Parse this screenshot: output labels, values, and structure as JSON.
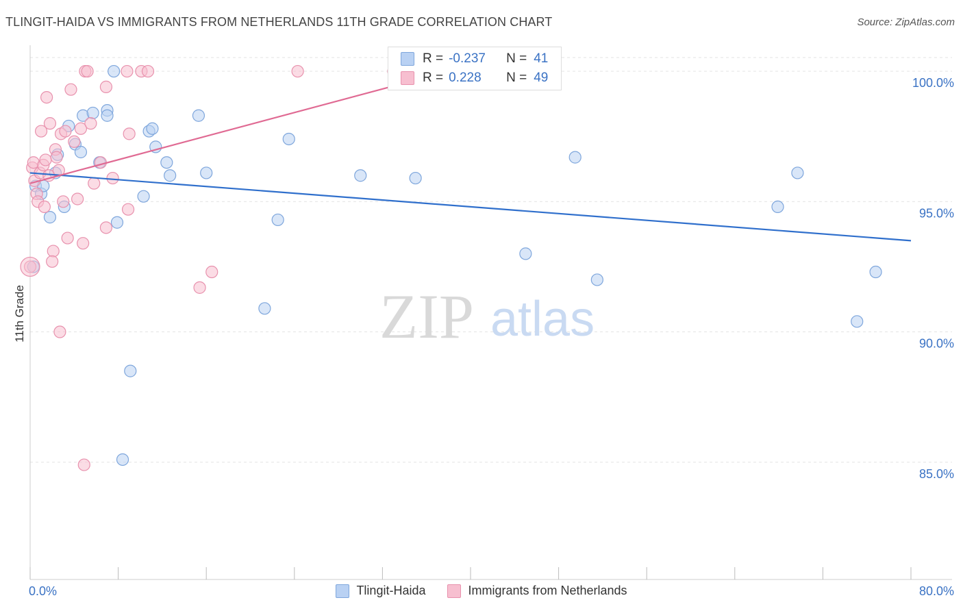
{
  "title": "TLINGIT-HAIDA VS IMMIGRANTS FROM NETHERLANDS 11TH GRADE CORRELATION CHART",
  "source": "Source: ZipAtlas.com",
  "watermark": {
    "zip": "ZIP",
    "atlas": "atlas"
  },
  "colors": {
    "blue_fill": "#b9d1f3",
    "blue_stroke": "#7ea6dc",
    "blue_line": "#2f6fcc",
    "pink_fill": "#f7bfd0",
    "pink_stroke": "#e891ad",
    "pink_line": "#e06a93",
    "axis_text": "#3a72c4",
    "grid": "#e3e3e3"
  },
  "legend": {
    "series1": {
      "r_label": "R =",
      "r_value": "-0.237",
      "n_label": "N =",
      "n_value": "41"
    },
    "series2": {
      "r_label": "R =",
      "r_value": "0.228",
      "n_label": "N =",
      "n_value": "49"
    }
  },
  "chart_data": {
    "type": "scatter",
    "title": "TLINGIT-HAIDA VS IMMIGRANTS FROM NETHERLANDS 11TH GRADE CORRELATION CHART",
    "xlabel": "",
    "ylabel": "11th Grade",
    "xlim": [
      0,
      80
    ],
    "ylim": [
      80.5,
      101.0
    ],
    "x_tick_labels": [
      "0.0%",
      "80.0%"
    ],
    "y_ticks": [
      85,
      90,
      95,
      100
    ],
    "y_tick_labels": [
      "85.0%",
      "90.0%",
      "95.0%",
      "100.0%"
    ],
    "grid": true,
    "legend_position": "top-center",
    "series": [
      {
        "name": "Tlingit-Haida",
        "color": "#b9d1f3",
        "trend": {
          "x": [
            0,
            80
          ],
          "y": [
            96.1,
            93.5
          ]
        },
        "points": [
          [
            0.3,
            92.5
          ],
          [
            0.5,
            95.6
          ],
          [
            1.0,
            95.3
          ],
          [
            1.2,
            95.6
          ],
          [
            1.8,
            94.4
          ],
          [
            2.3,
            96.1
          ],
          [
            2.5,
            96.8
          ],
          [
            3.1,
            94.8
          ],
          [
            3.5,
            97.9
          ],
          [
            4.1,
            97.2
          ],
          [
            4.6,
            96.9
          ],
          [
            4.8,
            98.3
          ],
          [
            5.7,
            98.4
          ],
          [
            6.3,
            96.5
          ],
          [
            7.0,
            98.5
          ],
          [
            7.0,
            98.3
          ],
          [
            7.6,
            100.0
          ],
          [
            7.9,
            94.2
          ],
          [
            8.4,
            85.1
          ],
          [
            9.1,
            88.5
          ],
          [
            10.3,
            95.2
          ],
          [
            10.8,
            97.7
          ],
          [
            11.1,
            97.8
          ],
          [
            11.4,
            97.1
          ],
          [
            12.4,
            96.5
          ],
          [
            12.7,
            96.0
          ],
          [
            15.3,
            98.3
          ],
          [
            16.0,
            96.1
          ],
          [
            21.3,
            90.9
          ],
          [
            22.5,
            94.3
          ],
          [
            23.5,
            97.4
          ],
          [
            30.0,
            96.0
          ],
          [
            35.0,
            95.9
          ],
          [
            36.7,
            100.0
          ],
          [
            45.0,
            93.0
          ],
          [
            49.5,
            96.7
          ],
          [
            51.5,
            92.0
          ],
          [
            67.9,
            94.8
          ],
          [
            69.7,
            96.1
          ],
          [
            75.1,
            90.4
          ],
          [
            76.8,
            92.3
          ]
        ]
      },
      {
        "name": "Immigrants from Netherlands",
        "color": "#f7bfd0",
        "trend": {
          "x": [
            0,
            38
          ],
          "y": [
            95.7,
            100.0
          ]
        },
        "points": [
          [
            0.0,
            92.5
          ],
          [
            0.2,
            96.3
          ],
          [
            0.3,
            96.5
          ],
          [
            0.4,
            95.8
          ],
          [
            0.6,
            95.3
          ],
          [
            0.7,
            95.0
          ],
          [
            0.9,
            96.1
          ],
          [
            1.0,
            97.7
          ],
          [
            1.2,
            96.4
          ],
          [
            1.3,
            94.8
          ],
          [
            1.4,
            96.6
          ],
          [
            1.5,
            99.0
          ],
          [
            1.7,
            96.0
          ],
          [
            1.8,
            98.0
          ],
          [
            2.1,
            93.1
          ],
          [
            2.0,
            92.7
          ],
          [
            2.3,
            97.0
          ],
          [
            2.4,
            96.7
          ],
          [
            2.6,
            96.2
          ],
          [
            2.7,
            90.0
          ],
          [
            2.8,
            97.6
          ],
          [
            3.0,
            95.0
          ],
          [
            3.2,
            97.7
          ],
          [
            3.4,
            93.6
          ],
          [
            3.7,
            99.3
          ],
          [
            4.0,
            97.3
          ],
          [
            4.3,
            95.1
          ],
          [
            4.6,
            97.8
          ],
          [
            4.8,
            93.4
          ],
          [
            4.9,
            84.9
          ],
          [
            5.0,
            100.0
          ],
          [
            5.2,
            100.0
          ],
          [
            5.5,
            98.0
          ],
          [
            5.8,
            95.7
          ],
          [
            6.4,
            96.5
          ],
          [
            6.9,
            99.4
          ],
          [
            6.9,
            94.0
          ],
          [
            7.5,
            95.9
          ],
          [
            8.8,
            100.0
          ],
          [
            8.9,
            94.7
          ],
          [
            9.0,
            97.6
          ],
          [
            10.1,
            100.0
          ],
          [
            10.7,
            100.0
          ],
          [
            15.4,
            91.7
          ],
          [
            16.5,
            92.3
          ],
          [
            24.3,
            100.0
          ],
          [
            33.0,
            100.0
          ],
          [
            35.5,
            100.0
          ],
          [
            37.0,
            100.0
          ]
        ]
      }
    ]
  }
}
